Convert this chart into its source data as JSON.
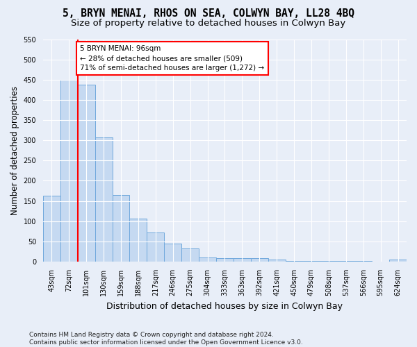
{
  "title": "5, BRYN MENAI, RHOS ON SEA, COLWYN BAY, LL28 4BQ",
  "subtitle": "Size of property relative to detached houses in Colwyn Bay",
  "xlabel": "Distribution of detached houses by size in Colwyn Bay",
  "ylabel": "Number of detached properties",
  "categories": [
    "43sqm",
    "72sqm",
    "101sqm",
    "130sqm",
    "159sqm",
    "188sqm",
    "217sqm",
    "246sqm",
    "275sqm",
    "304sqm",
    "333sqm",
    "363sqm",
    "392sqm",
    "421sqm",
    "450sqm",
    "479sqm",
    "508sqm",
    "537sqm",
    "566sqm",
    "595sqm",
    "624sqm"
  ],
  "values": [
    163,
    450,
    438,
    307,
    165,
    106,
    72,
    44,
    33,
    10,
    9,
    9,
    8,
    5,
    2,
    2,
    2,
    1,
    1,
    0,
    5
  ],
  "bar_color": "#c5d9f1",
  "bar_edge_color": "#6fa8dc",
  "annotation_line_color": "red",
  "annotation_box_text": "5 BRYN MENAI: 96sqm\n← 28% of detached houses are smaller (509)\n71% of semi-detached houses are larger (1,272) →",
  "annotation_box_color": "white",
  "annotation_box_edge_color": "red",
  "ylim": [
    0,
    550
  ],
  "yticks": [
    0,
    50,
    100,
    150,
    200,
    250,
    300,
    350,
    400,
    450,
    500,
    550
  ],
  "background_color": "#e8eef8",
  "plot_bg_color": "#e8eef8",
  "grid_color": "white",
  "footer_text": "Contains HM Land Registry data © Crown copyright and database right 2024.\nContains public sector information licensed under the Open Government Licence v3.0.",
  "title_fontsize": 10.5,
  "subtitle_fontsize": 9.5,
  "xlabel_fontsize": 9,
  "ylabel_fontsize": 8.5,
  "tick_fontsize": 7,
  "footer_fontsize": 6.5,
  "red_line_index": 2
}
